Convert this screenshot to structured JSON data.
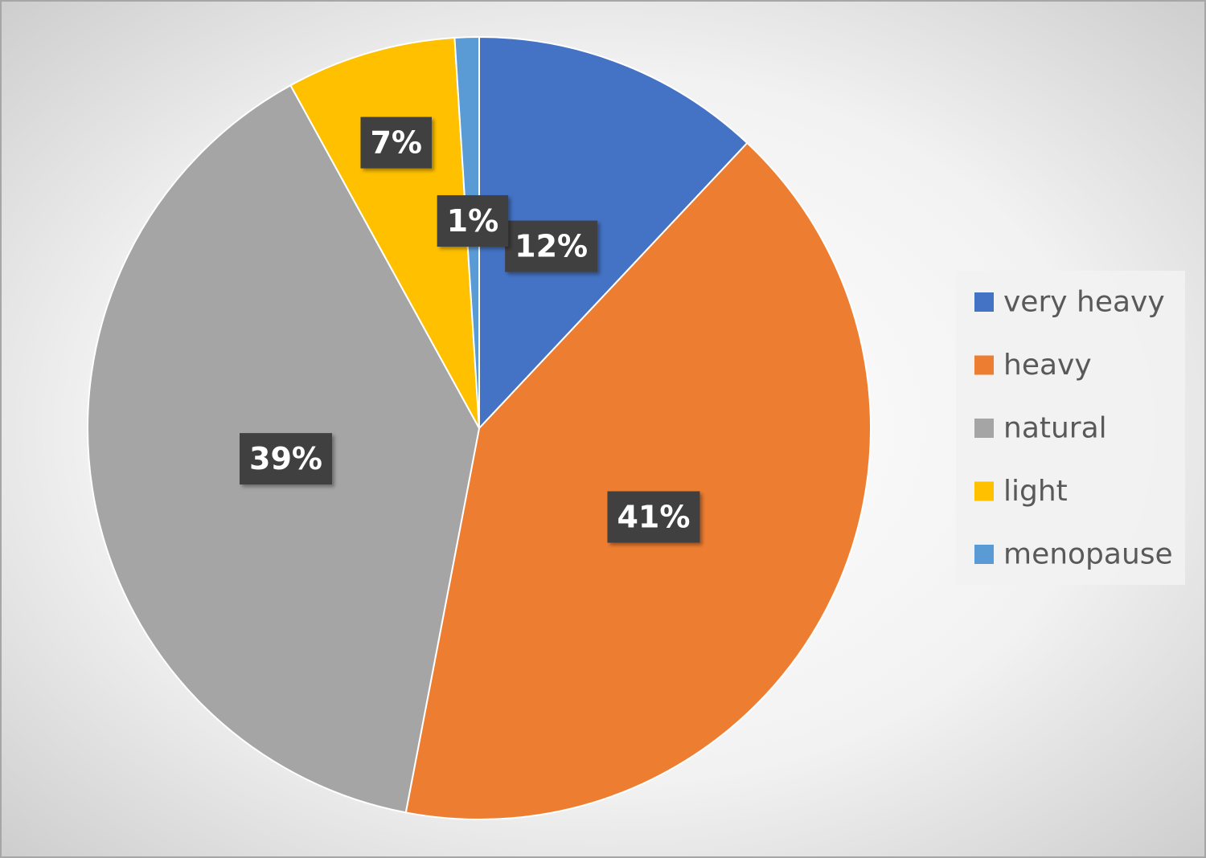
{
  "chart_data": {
    "type": "pie",
    "categories": [
      "very heavy",
      "heavy",
      "natural",
      "light",
      "menopause"
    ],
    "values": [
      12,
      41,
      39,
      7,
      1
    ],
    "value_labels": [
      "12%",
      "41%",
      "39%",
      "7%",
      "1%"
    ],
    "colors": [
      "#4472c4",
      "#ed7d31",
      "#a5a5a5",
      "#ffc000",
      "#5b9bd5"
    ],
    "legend": "right"
  }
}
